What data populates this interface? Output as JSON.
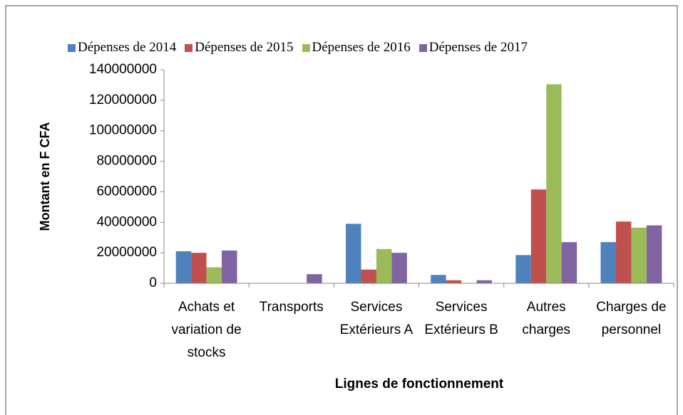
{
  "chart_data": {
    "type": "bar",
    "categories": [
      "Achats et variation de stocks",
      "Transports",
      "Services Extérieurs A",
      "Services Extérieurs B",
      "Autres charges",
      "Charges de personnel"
    ],
    "series": [
      {
        "name": "Dépenses de 2014",
        "color": "#4f81bd",
        "values": [
          21000000,
          0,
          39000000,
          5500000,
          18500000,
          27000000
        ]
      },
      {
        "name": "Dépenses de 2015",
        "color": "#c0504d",
        "values": [
          20000000,
          0,
          9000000,
          2000000,
          61500000,
          40500000
        ]
      },
      {
        "name": "Dépenses de 2016",
        "color": "#9bbb59",
        "values": [
          10500000,
          0,
          22500000,
          0,
          130500000,
          36500000
        ]
      },
      {
        "name": "Dépenses de 2017",
        "color": "#8064a2",
        "values": [
          21500000,
          6000000,
          20000000,
          2000000,
          27000000,
          38000000
        ]
      }
    ],
    "ylabel": "Montant en F CFA",
    "xlabel": "Lignes de fonctionnement",
    "ylim": [
      0,
      140000000
    ],
    "yticks": [
      0,
      20000000,
      40000000,
      60000000,
      80000000,
      100000000,
      120000000,
      140000000
    ],
    "grid": false,
    "legend": "top"
  }
}
